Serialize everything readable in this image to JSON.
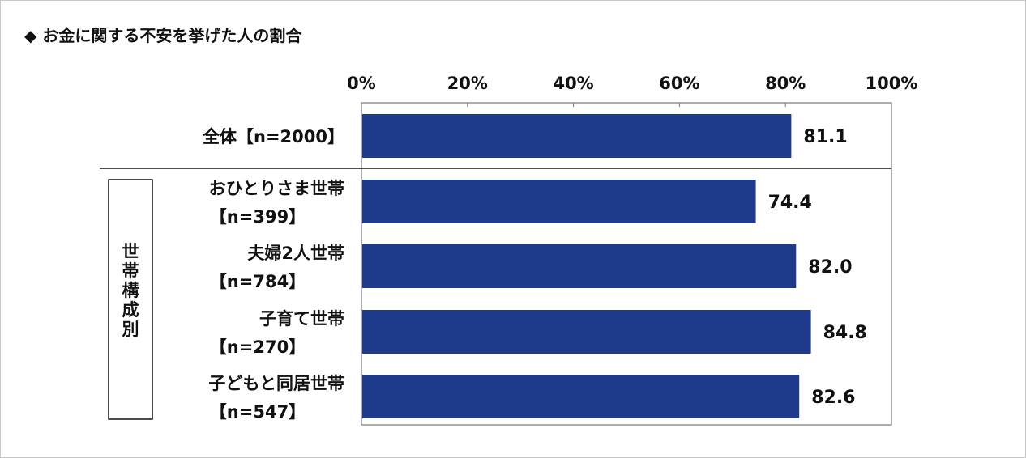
{
  "chart_data": {
    "type": "bar",
    "orientation": "horizontal",
    "title": "◆ お金に関する不安を挙げた人の割合",
    "xlim": [
      0,
      100
    ],
    "xticks": [
      "0%",
      "20%",
      "40%",
      "60%",
      "80%",
      "100%"
    ],
    "group_label": "世帯構成別",
    "bar_color": "#1f3a8c",
    "categories": [
      {
        "line1": "全体【n=2000】",
        "line2": "",
        "value": 81.1,
        "value_label": "81.1"
      },
      {
        "line1": "おひとりさま世帯",
        "line2": "【n=399】",
        "value": 74.4,
        "value_label": "74.4"
      },
      {
        "line1": "夫婦2人世帯",
        "line2": "【n=784】",
        "value": 82.0,
        "value_label": "82.0"
      },
      {
        "line1": "子育て世帯",
        "line2": "【n=270】",
        "value": 84.8,
        "value_label": "84.8"
      },
      {
        "line1": "子どもと同居世帯",
        "line2": "【n=547】",
        "value": 82.6,
        "value_label": "82.6"
      }
    ]
  }
}
